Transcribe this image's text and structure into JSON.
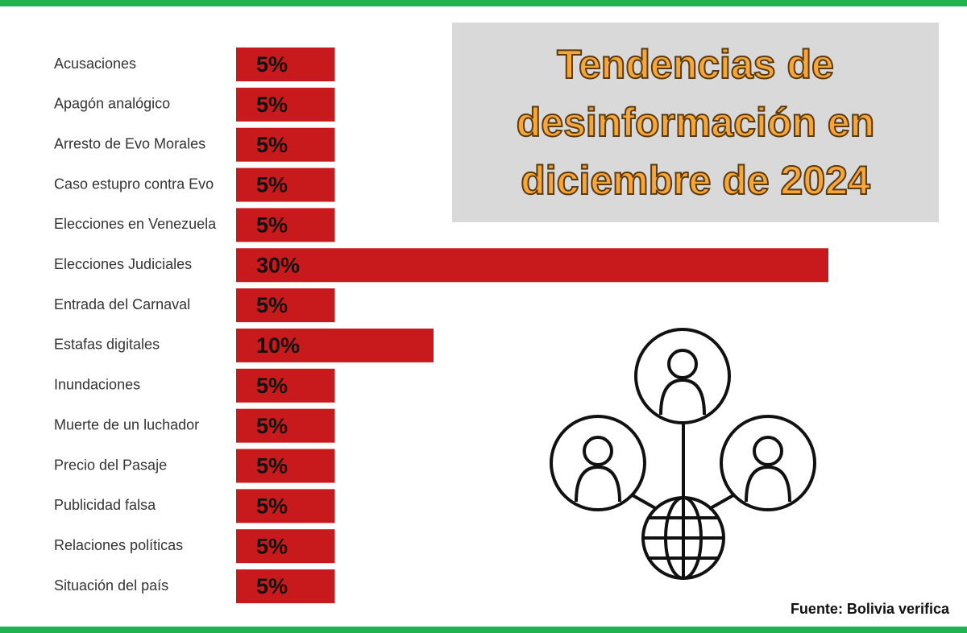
{
  "chart_data": {
    "type": "bar",
    "orientation": "horizontal",
    "title": "Tendencias de desinformación en diciembre de 2024",
    "source": "Fuente: Bolivia verifica",
    "categories": [
      "Acusaciones",
      "Apagón analógico",
      "Arresto de Evo Morales",
      "Caso estupro contra Evo",
      "Elecciones en Venezuela",
      "Elecciones Judiciales",
      "Entrada del Carnaval",
      "Estafas digitales",
      "Inundaciones",
      "Muerte de un luchador",
      "Precio del Pasaje",
      "Publicidad falsa",
      "Relaciones políticas",
      "Situación del país"
    ],
    "values": [
      5,
      5,
      5,
      5,
      5,
      30,
      5,
      10,
      5,
      5,
      5,
      5,
      5,
      5
    ],
    "value_labels": [
      "5%",
      "5%",
      "5%",
      "5%",
      "5%",
      "30%",
      "5%",
      "10%",
      "5%",
      "5%",
      "5%",
      "5%",
      "5%",
      "5%"
    ],
    "color": "#c81a1c"
  }
}
